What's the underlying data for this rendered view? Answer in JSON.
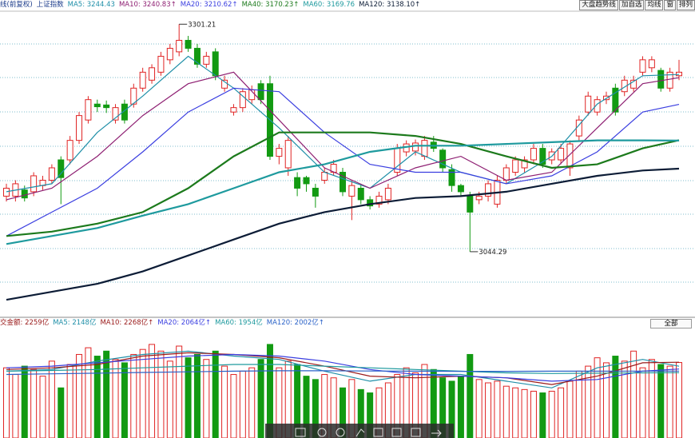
{
  "chart_data": [
    {
      "type": "candlestick",
      "title": "上证指数",
      "subtitle": "线(前复权)",
      "up_color": "#e02424",
      "down_color": "#129a12",
      "ylim": [
        2972,
        3315
      ],
      "open": [
        3107,
        3107,
        3114,
        3112,
        3119,
        3125,
        3148,
        3148,
        3170,
        3193,
        3211,
        3210,
        3193,
        3211,
        3211,
        3229,
        3238,
        3247,
        3261,
        3270,
        3283,
        3274,
        3256,
        3270,
        3229,
        3202,
        3207,
        3216,
        3234,
        3234,
        3152,
        3139,
        3128,
        3128,
        3116,
        3125,
        3134,
        3134,
        3107,
        3116,
        3103,
        3098,
        3103,
        3134,
        3157,
        3158,
        3152,
        3168,
        3159,
        3137,
        3119,
        3107,
        3103,
        3107,
        3098,
        3125,
        3134,
        3139,
        3148,
        3161,
        3148,
        3148,
        3139,
        3175,
        3202,
        3202,
        3216,
        3229,
        3225,
        3229,
        3247,
        3252,
        3249,
        3229,
        3243
      ],
      "high": [
        3121,
        3125,
        3119,
        3134,
        3130,
        3143,
        3152,
        3175,
        3202,
        3220,
        3216,
        3215,
        3211,
        3216,
        3234,
        3252,
        3256,
        3270,
        3279,
        3301.21,
        3288,
        3279,
        3270,
        3274,
        3243,
        3211,
        3229,
        3232,
        3238,
        3243,
        3166,
        3175,
        3134,
        3130,
        3121,
        3139,
        3148,
        3139,
        3125,
        3121,
        3107,
        3112,
        3121,
        3166,
        3170,
        3171,
        3175,
        3175,
        3161,
        3143,
        3121,
        3112,
        3112,
        3125,
        3130,
        3143,
        3152,
        3152,
        3166,
        3166,
        3161,
        3166,
        3170,
        3198,
        3225,
        3220,
        3225,
        3234,
        3243,
        3243,
        3265,
        3265,
        3252,
        3252,
        3261
      ],
      "low": [
        3101,
        3101,
        3101,
        3107,
        3114,
        3121,
        3098,
        3143,
        3166,
        3189,
        3202,
        3201,
        3189,
        3189,
        3207,
        3225,
        3234,
        3243,
        3256,
        3265,
        3270,
        3252,
        3252,
        3238,
        3225,
        3198,
        3202,
        3211,
        3211,
        3148,
        3143,
        3130,
        3107,
        3112,
        3094,
        3121,
        3130,
        3107,
        3080,
        3098,
        3092,
        3094,
        3098,
        3130,
        3152,
        3153,
        3148,
        3157,
        3134,
        3112,
        3107,
        3044.29,
        3098,
        3101,
        3094,
        3121,
        3130,
        3134,
        3143,
        3139,
        3143,
        3143,
        3130,
        3170,
        3198,
        3198,
        3211,
        3198,
        3220,
        3225,
        3243,
        3247,
        3225,
        3225,
        3238
      ],
      "close": [
        3116,
        3121,
        3105,
        3130,
        3125,
        3139,
        3128,
        3170,
        3198,
        3216,
        3208,
        3207,
        3207,
        3193,
        3229,
        3247,
        3252,
        3265,
        3274,
        3283,
        3274,
        3256,
        3265,
        3243,
        3238,
        3207,
        3225,
        3227,
        3216,
        3152,
        3161,
        3170,
        3116,
        3121,
        3107,
        3134,
        3143,
        3112,
        3119,
        3103,
        3096,
        3107,
        3116,
        3161,
        3166,
        3167,
        3170,
        3161,
        3139,
        3119,
        3112,
        3089,
        3107,
        3121,
        3125,
        3139,
        3148,
        3148,
        3161,
        3143,
        3157,
        3161,
        3166,
        3193,
        3220,
        3216,
        3220,
        3202,
        3238,
        3238,
        3261,
        3261,
        3229,
        3247,
        3247
      ],
      "annotations": [
        3301.21,
        3044.29
      ],
      "series": [
        {
          "name": "MA5: 3244.43",
          "color": "#1f8fa8",
          "x": [
            0,
            5,
            10,
            15,
            20,
            25,
            30,
            35,
            40,
            45,
            50,
            55,
            60,
            65,
            70,
            74
          ],
          "values": [
            3112,
            3121,
            3179,
            3220,
            3265,
            3229,
            3184,
            3134,
            3116,
            3157,
            3134,
            3121,
            3152,
            3211,
            3243,
            3244.43
          ]
        },
        {
          "name": "MA10: 3240.83↑",
          "color": "#8e1f72",
          "x": [
            0,
            5,
            10,
            15,
            20,
            25,
            30,
            35,
            40,
            45,
            50,
            55,
            60,
            65,
            70,
            74
          ],
          "values": [
            3103,
            3116,
            3152,
            3198,
            3234,
            3247,
            3193,
            3139,
            3116,
            3139,
            3152,
            3125,
            3134,
            3184,
            3234,
            3240.83
          ]
        },
        {
          "name": "MA20: 3210.62↑",
          "color": "#3a3ee0",
          "x": [
            0,
            5,
            10,
            15,
            20,
            25,
            30,
            35,
            40,
            45,
            50,
            55,
            60,
            65,
            70,
            74
          ],
          "values": [
            3062,
            3089,
            3116,
            3157,
            3202,
            3229,
            3225,
            3179,
            3143,
            3134,
            3134,
            3121,
            3130,
            3157,
            3202,
            3210.62
          ]
        },
        {
          "name": "MA40: 3170.23↑",
          "color": "#1c7a1c",
          "x": [
            0,
            5,
            10,
            15,
            20,
            25,
            30,
            35,
            40,
            45,
            50,
            55,
            60,
            65,
            70,
            74
          ],
          "values": [
            3062,
            3067,
            3076,
            3089,
            3116,
            3152,
            3179,
            3179,
            3179,
            3175,
            3166,
            3152,
            3139,
            3143,
            3161,
            3170.23
          ]
        },
        {
          "name": "MA60: 3169.76",
          "color": "#1e9a9e",
          "x": [
            0,
            5,
            10,
            15,
            20,
            25,
            30,
            35,
            40,
            45,
            50,
            55,
            60,
            65,
            70,
            74
          ],
          "values": [
            3053,
            3062,
            3071,
            3085,
            3098,
            3116,
            3134,
            3143,
            3157,
            3164,
            3164,
            3166,
            3168,
            3170,
            3170,
            3169.76
          ]
        },
        {
          "name": "MA120: 3138.10↑",
          "color": "#0c1c36",
          "x": [
            0,
            5,
            10,
            15,
            20,
            25,
            30,
            35,
            40,
            45,
            50,
            55,
            60,
            65,
            70,
            74
          ],
          "values": [
            2990,
            2999,
            3008,
            3022,
            3040,
            3058,
            3076,
            3089,
            3098,
            3105,
            3107,
            3112,
            3121,
            3130,
            3136,
            3138.1
          ]
        }
      ]
    },
    {
      "type": "bar",
      "title": "交金额: 2259亿",
      "ylim": [
        0,
        3300
      ],
      "values": [
        2100,
        1900,
        2150,
        2050,
        1850,
        2300,
        1500,
        2200,
        2500,
        2700,
        2450,
        2600,
        2350,
        2250,
        2500,
        2650,
        2800,
        2600,
        2300,
        2750,
        2400,
        2500,
        2350,
        2600,
        2150,
        1900,
        2000,
        2100,
        2350,
        2800,
        2100,
        2300,
        2200,
        1850,
        1750,
        1900,
        1800,
        1500,
        1750,
        1450,
        1350,
        1500,
        1650,
        1900,
        2100,
        1950,
        2200,
        2050,
        1800,
        1700,
        1850,
        2500,
        1750,
        1650,
        1700,
        1550,
        1500,
        1450,
        1400,
        1350,
        1400,
        1500,
        1700,
        2000,
        2150,
        2400,
        2250,
        2450,
        2300,
        2600,
        2100,
        2350,
        2200,
        2150,
        2259
      ],
      "series": [
        {
          "name": "MA5: 2148亿",
          "color": "#1f8fa8",
          "x": [
            0,
            5,
            10,
            15,
            20,
            25,
            30,
            35,
            40,
            45,
            50,
            55,
            60,
            65,
            70,
            74
          ],
          "values": [
            2000,
            2050,
            2300,
            2500,
            2600,
            2450,
            2350,
            2000,
            1700,
            1900,
            1900,
            1700,
            1500,
            2100,
            2350,
            2148
          ]
        },
        {
          "name": "MA10: 2268亿↑",
          "color": "#9a1a1a",
          "x": [
            0,
            5,
            10,
            15,
            20,
            25,
            30,
            35,
            40,
            45,
            50,
            55,
            60,
            65,
            70,
            74
          ],
          "values": [
            2050,
            2100,
            2200,
            2450,
            2550,
            2500,
            2400,
            2150,
            1850,
            1800,
            1850,
            1800,
            1600,
            1850,
            2250,
            2268
          ]
        },
        {
          "name": "MA20: 2064亿↑",
          "color": "#3a3ee0",
          "x": [
            0,
            5,
            10,
            15,
            20,
            25,
            30,
            35,
            40,
            45,
            50,
            55,
            60,
            65,
            70,
            74
          ],
          "values": [
            2100,
            2150,
            2250,
            2350,
            2450,
            2500,
            2450,
            2300,
            2050,
            1900,
            1850,
            1800,
            1700,
            1750,
            2000,
            2064
          ]
        },
        {
          "name": "MA60: 1954亿",
          "color": "#1e9a9e",
          "x": [
            0,
            5,
            10,
            15,
            20,
            25,
            30,
            35,
            40,
            45,
            50,
            55,
            60,
            65,
            70,
            74
          ],
          "values": [
            2000,
            2020,
            2050,
            2100,
            2150,
            2200,
            2200,
            2150,
            2100,
            2050,
            2000,
            1950,
            1930,
            1940,
            1950,
            1954
          ]
        },
        {
          "name": "MA120: 2002亿↑",
          "color": "#2a62c8",
          "x": [
            0,
            5,
            10,
            15,
            20,
            25,
            30,
            35,
            40,
            45,
            50,
            55,
            60,
            65,
            70,
            74
          ],
          "values": [
            1900,
            1920,
            1940,
            1960,
            1980,
            2000,
            2010,
            2010,
            2005,
            2000,
            1995,
            1995,
            1998,
            2000,
            2002,
            2002
          ]
        }
      ]
    }
  ],
  "toolbar": [
    "大盘趋势线",
    "加自选",
    "均线",
    "窗",
    "排列"
  ],
  "volume_selector": "全部"
}
